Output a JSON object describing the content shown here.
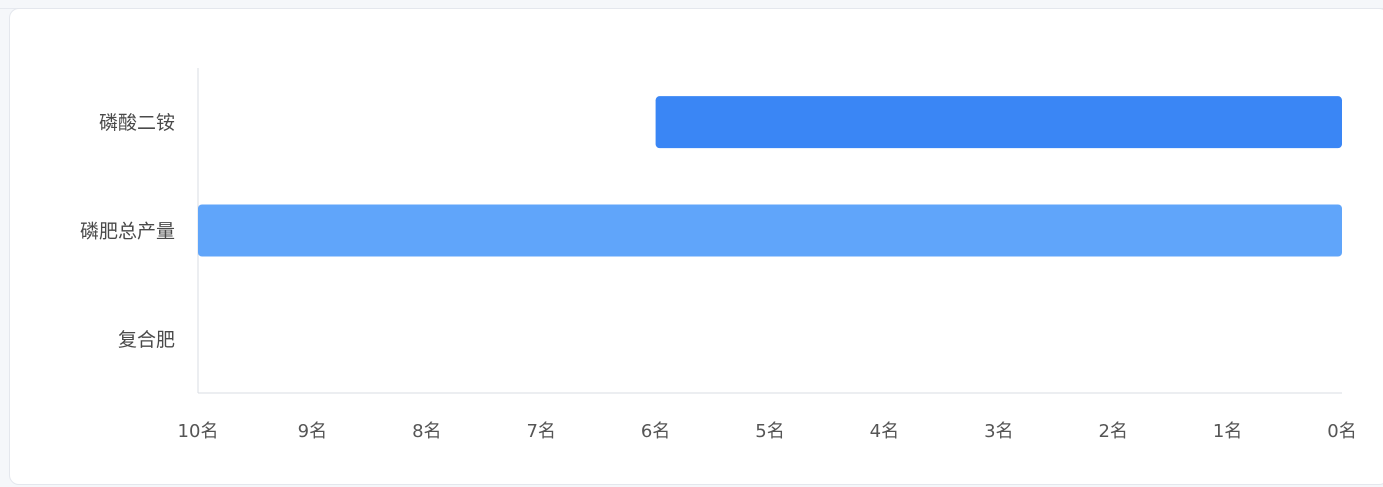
{
  "chart_data": {
    "type": "bar",
    "orientation": "horizontal",
    "categories": [
      "磷酸二铵",
      "磷肥总产量",
      "复合肥"
    ],
    "series": [
      {
        "values": [
          6,
          10,
          null
        ]
      }
    ],
    "bar_colors": [
      "#3a86f5",
      "#60a5fa"
    ],
    "x_axis": {
      "reversed": true,
      "min": 0,
      "max": 10,
      "ticks": [
        10,
        9,
        8,
        7,
        6,
        5,
        4,
        3,
        2,
        1,
        0
      ],
      "tick_labels": [
        "10名",
        "9名",
        "8名",
        "7名",
        "6名",
        "5名",
        "4名",
        "3名",
        "2名",
        "1名",
        "0名"
      ]
    },
    "title": "",
    "xlabel": "",
    "ylabel": "",
    "grid": false
  }
}
